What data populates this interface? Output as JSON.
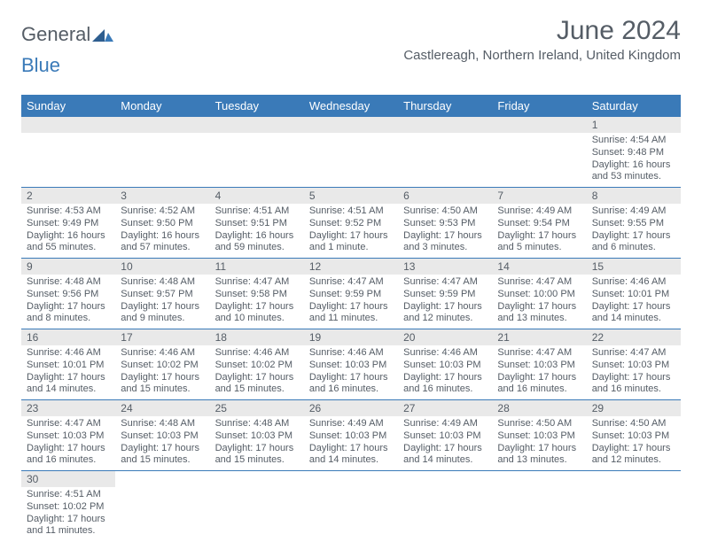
{
  "logo": {
    "part1": "General",
    "part2": "Blue"
  },
  "title": "June 2024",
  "location": "Castlereagh, Northern Ireland, United Kingdom",
  "colors": {
    "header_bg": "#3a7ab8",
    "header_text": "#ffffff",
    "daynum_bg": "#e9e9e9",
    "text": "#555d66",
    "row_border": "#3a7ab8"
  },
  "daynames": [
    "Sunday",
    "Monday",
    "Tuesday",
    "Wednesday",
    "Thursday",
    "Friday",
    "Saturday"
  ],
  "weeks": [
    [
      null,
      null,
      null,
      null,
      null,
      null,
      {
        "n": "1",
        "sr": "Sunrise: 4:54 AM",
        "ss": "Sunset: 9:48 PM",
        "d1": "Daylight: 16 hours",
        "d2": "and 53 minutes."
      }
    ],
    [
      {
        "n": "2",
        "sr": "Sunrise: 4:53 AM",
        "ss": "Sunset: 9:49 PM",
        "d1": "Daylight: 16 hours",
        "d2": "and 55 minutes."
      },
      {
        "n": "3",
        "sr": "Sunrise: 4:52 AM",
        "ss": "Sunset: 9:50 PM",
        "d1": "Daylight: 16 hours",
        "d2": "and 57 minutes."
      },
      {
        "n": "4",
        "sr": "Sunrise: 4:51 AM",
        "ss": "Sunset: 9:51 PM",
        "d1": "Daylight: 16 hours",
        "d2": "and 59 minutes."
      },
      {
        "n": "5",
        "sr": "Sunrise: 4:51 AM",
        "ss": "Sunset: 9:52 PM",
        "d1": "Daylight: 17 hours",
        "d2": "and 1 minute."
      },
      {
        "n": "6",
        "sr": "Sunrise: 4:50 AM",
        "ss": "Sunset: 9:53 PM",
        "d1": "Daylight: 17 hours",
        "d2": "and 3 minutes."
      },
      {
        "n": "7",
        "sr": "Sunrise: 4:49 AM",
        "ss": "Sunset: 9:54 PM",
        "d1": "Daylight: 17 hours",
        "d2": "and 5 minutes."
      },
      {
        "n": "8",
        "sr": "Sunrise: 4:49 AM",
        "ss": "Sunset: 9:55 PM",
        "d1": "Daylight: 17 hours",
        "d2": "and 6 minutes."
      }
    ],
    [
      {
        "n": "9",
        "sr": "Sunrise: 4:48 AM",
        "ss": "Sunset: 9:56 PM",
        "d1": "Daylight: 17 hours",
        "d2": "and 8 minutes."
      },
      {
        "n": "10",
        "sr": "Sunrise: 4:48 AM",
        "ss": "Sunset: 9:57 PM",
        "d1": "Daylight: 17 hours",
        "d2": "and 9 minutes."
      },
      {
        "n": "11",
        "sr": "Sunrise: 4:47 AM",
        "ss": "Sunset: 9:58 PM",
        "d1": "Daylight: 17 hours",
        "d2": "and 10 minutes."
      },
      {
        "n": "12",
        "sr": "Sunrise: 4:47 AM",
        "ss": "Sunset: 9:59 PM",
        "d1": "Daylight: 17 hours",
        "d2": "and 11 minutes."
      },
      {
        "n": "13",
        "sr": "Sunrise: 4:47 AM",
        "ss": "Sunset: 9:59 PM",
        "d1": "Daylight: 17 hours",
        "d2": "and 12 minutes."
      },
      {
        "n": "14",
        "sr": "Sunrise: 4:47 AM",
        "ss": "Sunset: 10:00 PM",
        "d1": "Daylight: 17 hours",
        "d2": "and 13 minutes."
      },
      {
        "n": "15",
        "sr": "Sunrise: 4:46 AM",
        "ss": "Sunset: 10:01 PM",
        "d1": "Daylight: 17 hours",
        "d2": "and 14 minutes."
      }
    ],
    [
      {
        "n": "16",
        "sr": "Sunrise: 4:46 AM",
        "ss": "Sunset: 10:01 PM",
        "d1": "Daylight: 17 hours",
        "d2": "and 14 minutes."
      },
      {
        "n": "17",
        "sr": "Sunrise: 4:46 AM",
        "ss": "Sunset: 10:02 PM",
        "d1": "Daylight: 17 hours",
        "d2": "and 15 minutes."
      },
      {
        "n": "18",
        "sr": "Sunrise: 4:46 AM",
        "ss": "Sunset: 10:02 PM",
        "d1": "Daylight: 17 hours",
        "d2": "and 15 minutes."
      },
      {
        "n": "19",
        "sr": "Sunrise: 4:46 AM",
        "ss": "Sunset: 10:03 PM",
        "d1": "Daylight: 17 hours",
        "d2": "and 16 minutes."
      },
      {
        "n": "20",
        "sr": "Sunrise: 4:46 AM",
        "ss": "Sunset: 10:03 PM",
        "d1": "Daylight: 17 hours",
        "d2": "and 16 minutes."
      },
      {
        "n": "21",
        "sr": "Sunrise: 4:47 AM",
        "ss": "Sunset: 10:03 PM",
        "d1": "Daylight: 17 hours",
        "d2": "and 16 minutes."
      },
      {
        "n": "22",
        "sr": "Sunrise: 4:47 AM",
        "ss": "Sunset: 10:03 PM",
        "d1": "Daylight: 17 hours",
        "d2": "and 16 minutes."
      }
    ],
    [
      {
        "n": "23",
        "sr": "Sunrise: 4:47 AM",
        "ss": "Sunset: 10:03 PM",
        "d1": "Daylight: 17 hours",
        "d2": "and 16 minutes."
      },
      {
        "n": "24",
        "sr": "Sunrise: 4:48 AM",
        "ss": "Sunset: 10:03 PM",
        "d1": "Daylight: 17 hours",
        "d2": "and 15 minutes."
      },
      {
        "n": "25",
        "sr": "Sunrise: 4:48 AM",
        "ss": "Sunset: 10:03 PM",
        "d1": "Daylight: 17 hours",
        "d2": "and 15 minutes."
      },
      {
        "n": "26",
        "sr": "Sunrise: 4:49 AM",
        "ss": "Sunset: 10:03 PM",
        "d1": "Daylight: 17 hours",
        "d2": "and 14 minutes."
      },
      {
        "n": "27",
        "sr": "Sunrise: 4:49 AM",
        "ss": "Sunset: 10:03 PM",
        "d1": "Daylight: 17 hours",
        "d2": "and 14 minutes."
      },
      {
        "n": "28",
        "sr": "Sunrise: 4:50 AM",
        "ss": "Sunset: 10:03 PM",
        "d1": "Daylight: 17 hours",
        "d2": "and 13 minutes."
      },
      {
        "n": "29",
        "sr": "Sunrise: 4:50 AM",
        "ss": "Sunset: 10:03 PM",
        "d1": "Daylight: 17 hours",
        "d2": "and 12 minutes."
      }
    ],
    [
      {
        "n": "30",
        "sr": "Sunrise: 4:51 AM",
        "ss": "Sunset: 10:02 PM",
        "d1": "Daylight: 17 hours",
        "d2": "and 11 minutes."
      },
      null,
      null,
      null,
      null,
      null,
      null
    ]
  ]
}
